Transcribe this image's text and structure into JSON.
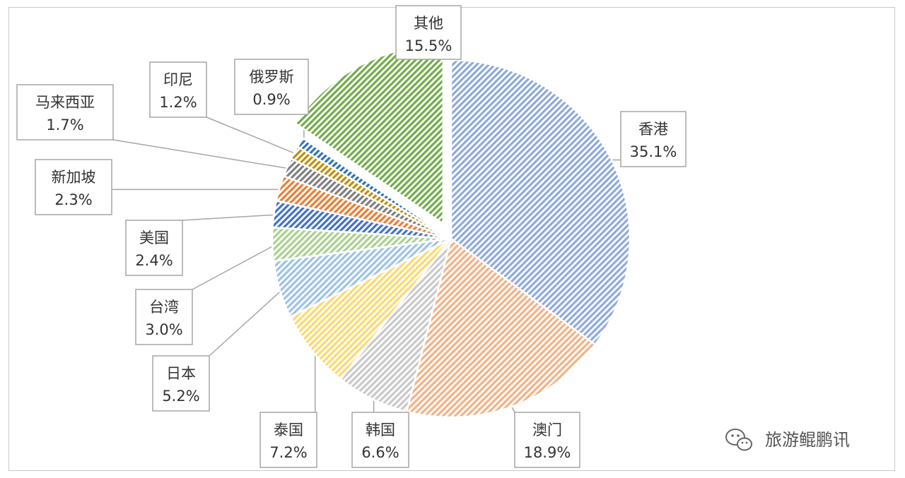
{
  "chart_data": {
    "type": "pie",
    "title": "",
    "slices": [
      {
        "label": "香港",
        "value": 35.1,
        "display": "35.1%",
        "color": "#8eaadb",
        "name_key": "hk"
      },
      {
        "label": "澳门",
        "value": 18.9,
        "display": "18.9%",
        "color": "#f4b183",
        "name_key": "macau"
      },
      {
        "label": "韩国",
        "value": 6.6,
        "display": "6.6%",
        "color": "#c9c9c9",
        "name_key": "korea"
      },
      {
        "label": "泰国",
        "value": 7.2,
        "display": "7.2%",
        "color": "#ffd966",
        "name_key": "thailand"
      },
      {
        "label": "日本",
        "value": 5.2,
        "display": "5.2%",
        "color": "#9dc3e6",
        "name_key": "japan"
      },
      {
        "label": "台湾",
        "value": 3.0,
        "display": "3.0%",
        "color": "#a9d18e",
        "name_key": "taiwan"
      },
      {
        "label": "美国",
        "value": 2.4,
        "display": "2.4%",
        "color": "#4472c4",
        "name_key": "usa"
      },
      {
        "label": "新加坡",
        "value": 2.3,
        "display": "2.3%",
        "color": "#ed7d31",
        "name_key": "singapore"
      },
      {
        "label": "马来西亚",
        "value": 1.7,
        "display": "1.7%",
        "color": "#7f7f7f",
        "name_key": "malaysia"
      },
      {
        "label": "印尼",
        "value": 1.2,
        "display": "1.2%",
        "color": "#bf9000",
        "name_key": "indonesia"
      },
      {
        "label": "俄罗斯",
        "value": 0.9,
        "display": "0.9%",
        "color": "#2e75b6",
        "name_key": "russia"
      },
      {
        "label": "其他",
        "value": 15.5,
        "display": "15.5%",
        "color": "#70ad47",
        "name_key": "other",
        "exploded": true
      }
    ],
    "legend": "none",
    "data_labels": "callout-boxes"
  },
  "watermark": {
    "text": "旅游鲲鹏讯",
    "icon": "wechat-icon"
  }
}
